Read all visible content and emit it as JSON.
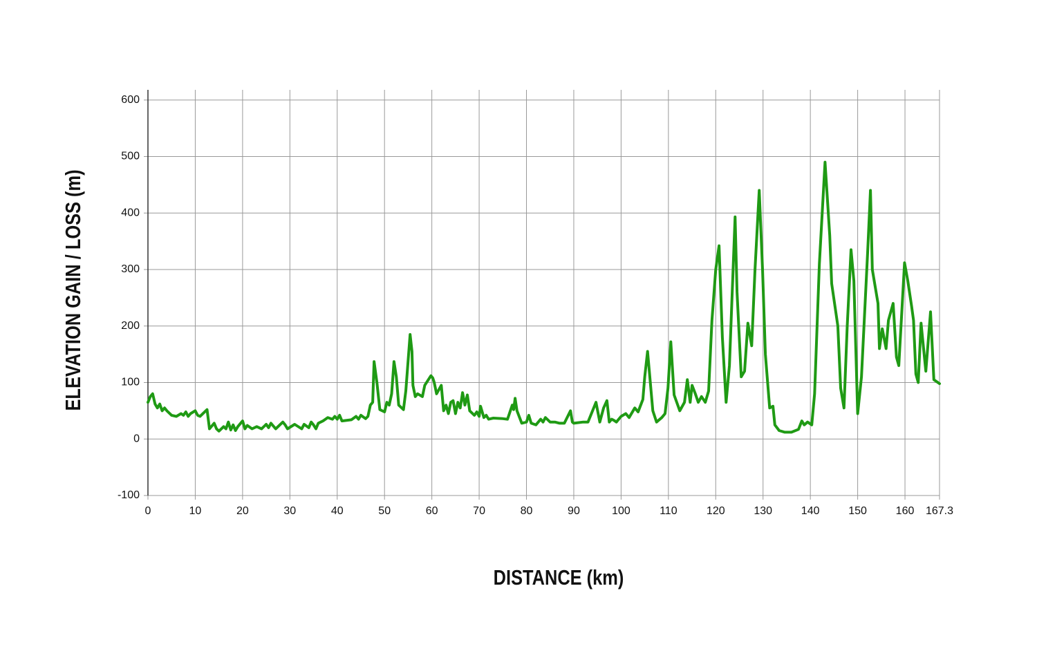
{
  "chart_data": {
    "type": "line",
    "xlabel": "DISTANCE (km)",
    "ylabel": "ELEVATION GAIN / LOSS (m)",
    "x": [
      0,
      0.5,
      1,
      1.5,
      2,
      2.5,
      3,
      3.5,
      4,
      5,
      6,
      7,
      7.5,
      8,
      8.5,
      9,
      10,
      10.5,
      11,
      12.5,
      13,
      14,
      14.5,
      15,
      16,
      16.5,
      17,
      17.5,
      18,
      18.5,
      19,
      20,
      20.5,
      21,
      22,
      23,
      24,
      25,
      25.5,
      26,
      27,
      28.5,
      29,
      29.5,
      31,
      32.5,
      33,
      34,
      34.5,
      35,
      35.5,
      36,
      37,
      38,
      39,
      39.5,
      40,
      40.5,
      41,
      43,
      44,
      44.5,
      45,
      46,
      46.5,
      47,
      47.5,
      47.8,
      48.4,
      49,
      50,
      50.5,
      51,
      51.5,
      52,
      52.5,
      53,
      54,
      54.5,
      55.4,
      55.8,
      56,
      56.5,
      57,
      58,
      58.5,
      59.8,
      60.2,
      60.5,
      61,
      62,
      62.5,
      63,
      63.5,
      64,
      64.5,
      65,
      65.5,
      66,
      66.5,
      67,
      67.5,
      68,
      69,
      69.5,
      70,
      70.3,
      71,
      71.5,
      72,
      73,
      75,
      76,
      77,
      77.3,
      77.6,
      78,
      79,
      80,
      80.5,
      81,
      82,
      83,
      83.5,
      84,
      85,
      86,
      87,
      88,
      89.3,
      89.7,
      90,
      92,
      93,
      94.7,
      95.5,
      96.3,
      97,
      97.5,
      98,
      98.5,
      99,
      100,
      101,
      101.7,
      102.9,
      103.6,
      104.6,
      105,
      105.6,
      106.7,
      107.5,
      108.6,
      109.3,
      109.9,
      110.5,
      111.2,
      112.4,
      113.4,
      114,
      114.6,
      115,
      115.7,
      116.3,
      117,
      117.8,
      118.5,
      119.2,
      120,
      120.7,
      121.4,
      122.2,
      122.9,
      124.1,
      124.5,
      125.4,
      126.1,
      126.8,
      127.6,
      128.3,
      129.2,
      129.9,
      130.5,
      131.4,
      132.1,
      132.5,
      133.4,
      134.6,
      136,
      137.5,
      138.2,
      138.7,
      139.4,
      140.3,
      140.9,
      141.9,
      143.1,
      144.1,
      144.5,
      145.8,
      146.4,
      147.1,
      147.8,
      148.6,
      149.2,
      150,
      150.8,
      152.1,
      152.7,
      153.1,
      154.3,
      154.6,
      155.2,
      156,
      156.5,
      157.5,
      158.2,
      158.7,
      159.9,
      160.6,
      161.4,
      161.8,
      162.3,
      162.8,
      163.4,
      164.4,
      165.4,
      166.1,
      167.3
    ],
    "values": [
      65,
      75,
      80,
      62,
      55,
      62,
      50,
      55,
      50,
      42,
      40,
      45,
      42,
      48,
      40,
      45,
      50,
      42,
      40,
      52,
      18,
      28,
      18,
      14,
      22,
      18,
      30,
      16,
      25,
      15,
      22,
      32,
      18,
      24,
      18,
      22,
      18,
      26,
      20,
      28,
      18,
      30,
      25,
      18,
      26,
      18,
      26,
      20,
      30,
      25,
      18,
      28,
      32,
      38,
      35,
      40,
      35,
      42,
      32,
      34,
      40,
      35,
      42,
      36,
      40,
      60,
      65,
      137,
      100,
      52,
      48,
      65,
      60,
      80,
      137,
      110,
      60,
      52,
      85,
      185,
      155,
      95,
      75,
      80,
      75,
      95,
      112,
      108,
      100,
      80,
      95,
      50,
      60,
      45,
      65,
      68,
      45,
      65,
      55,
      82,
      60,
      78,
      50,
      42,
      48,
      40,
      58,
      38,
      42,
      35,
      37,
      36,
      35,
      60,
      52,
      72,
      50,
      28,
      30,
      42,
      28,
      25,
      35,
      30,
      38,
      30,
      30,
      28,
      28,
      50,
      30,
      28,
      30,
      30,
      65,
      30,
      55,
      68,
      30,
      35,
      33,
      30,
      40,
      45,
      38,
      55,
      48,
      70,
      110,
      155,
      50,
      30,
      38,
      45,
      90,
      172,
      78,
      50,
      65,
      105,
      65,
      95,
      80,
      65,
      75,
      65,
      85,
      210,
      300,
      342,
      180,
      65,
      130,
      393,
      260,
      110,
      120,
      205,
      165,
      300,
      440,
      300,
      150,
      55,
      58,
      25,
      15,
      12,
      12,
      17,
      32,
      25,
      30,
      25,
      80,
      310,
      490,
      360,
      275,
      200,
      90,
      55,
      200,
      335,
      280,
      45,
      110,
      330,
      440,
      300,
      240,
      160,
      195,
      160,
      210,
      240,
      145,
      130,
      312,
      280,
      235,
      210,
      115,
      100,
      205,
      120,
      225,
      105,
      98
    ],
    "color": "#1f9a14",
    "xlim": [
      0,
      167.3
    ],
    "ylim": [
      -100,
      618
    ],
    "xticks": [
      0,
      10,
      20,
      30,
      40,
      50,
      60,
      70,
      80,
      90,
      100,
      110,
      120,
      130,
      140,
      150,
      160,
      167.3
    ],
    "yticks": [
      -100,
      0,
      100,
      200,
      300,
      400,
      500,
      600
    ],
    "grid": true
  }
}
